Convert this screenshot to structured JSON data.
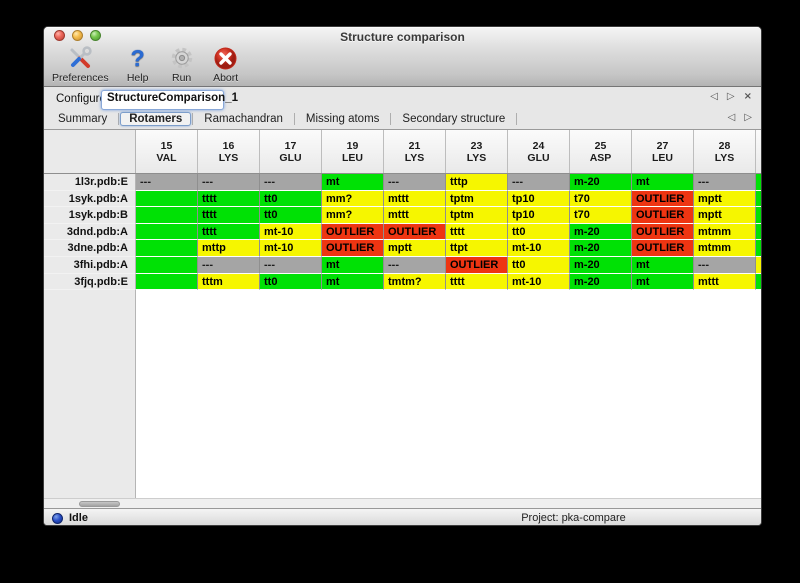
{
  "window": {
    "title": "Structure comparison"
  },
  "toolbar": {
    "buttons": [
      {
        "label": "Preferences",
        "icon": "tools-icon"
      },
      {
        "label": "Help",
        "icon": "question-icon"
      },
      {
        "label": "Run",
        "icon": "gear-icon"
      },
      {
        "label": "Abort",
        "icon": "abort-icon"
      }
    ]
  },
  "configure": {
    "label": "Configure",
    "value": "StructureComparison_1",
    "nav_prev": "◁",
    "nav_next": "▷",
    "nav_close": "×"
  },
  "tabs": {
    "items": [
      {
        "label": "Summary",
        "selected": false
      },
      {
        "label": "Rotamers",
        "selected": true
      },
      {
        "label": "Ramachandran",
        "selected": false
      },
      {
        "label": "Missing atoms",
        "selected": false
      },
      {
        "label": "Secondary structure",
        "selected": false
      }
    ],
    "nav_prev": "◁",
    "nav_next": "▷"
  },
  "table": {
    "columns": [
      {
        "num": "15",
        "res": "VAL"
      },
      {
        "num": "16",
        "res": "LYS"
      },
      {
        "num": "17",
        "res": "GLU"
      },
      {
        "num": "19",
        "res": "LEU"
      },
      {
        "num": "21",
        "res": "LYS"
      },
      {
        "num": "23",
        "res": "LYS"
      },
      {
        "num": "24",
        "res": "GLU"
      },
      {
        "num": "25",
        "res": "ASP"
      },
      {
        "num": "27",
        "res": "LEU"
      },
      {
        "num": "28",
        "res": "LYS"
      }
    ],
    "rows": [
      {
        "label": "1l3r.pdb:E",
        "cells": [
          [
            "---",
            "gray"
          ],
          [
            "---",
            "gray"
          ],
          [
            "---",
            "gray"
          ],
          [
            "mt",
            "green"
          ],
          [
            "---",
            "gray"
          ],
          [
            "tttp",
            "yellow"
          ],
          [
            "---",
            "gray"
          ],
          [
            "m-20",
            "green"
          ],
          [
            "mt",
            "green"
          ],
          [
            "---",
            "gray"
          ]
        ],
        "partial": "green"
      },
      {
        "label": "1syk.pdb:A",
        "cells": [
          [
            "",
            "green"
          ],
          [
            "tttt",
            "green"
          ],
          [
            "tt0",
            "green"
          ],
          [
            "mm?",
            "yellow"
          ],
          [
            "mttt",
            "yellow"
          ],
          [
            "tptm",
            "yellow"
          ],
          [
            "tp10",
            "yellow"
          ],
          [
            "t70",
            "yellow"
          ],
          [
            "OUTLIER",
            "red"
          ],
          [
            "mptt",
            "yellow"
          ]
        ],
        "partial": "green"
      },
      {
        "label": "1syk.pdb:B",
        "cells": [
          [
            "",
            "green"
          ],
          [
            "tttt",
            "green"
          ],
          [
            "tt0",
            "green"
          ],
          [
            "mm?",
            "yellow"
          ],
          [
            "mttt",
            "yellow"
          ],
          [
            "tptm",
            "yellow"
          ],
          [
            "tp10",
            "yellow"
          ],
          [
            "t70",
            "yellow"
          ],
          [
            "OUTLIER",
            "red"
          ],
          [
            "mptt",
            "yellow"
          ]
        ],
        "partial": "green"
      },
      {
        "label": "3dnd.pdb:A",
        "cells": [
          [
            "",
            "green"
          ],
          [
            "tttt",
            "green"
          ],
          [
            "mt-10",
            "yellow"
          ],
          [
            "OUTLIER",
            "red"
          ],
          [
            "OUTLIER",
            "red"
          ],
          [
            "tttt",
            "yellow"
          ],
          [
            "tt0",
            "yellow"
          ],
          [
            "m-20",
            "green"
          ],
          [
            "OUTLIER",
            "red"
          ],
          [
            "mtmm",
            "yellow"
          ]
        ],
        "partial": "green"
      },
      {
        "label": "3dne.pdb:A",
        "cells": [
          [
            "",
            "green"
          ],
          [
            "mttp",
            "yellow"
          ],
          [
            "mt-10",
            "yellow"
          ],
          [
            "OUTLIER",
            "red"
          ],
          [
            "mptt",
            "yellow"
          ],
          [
            "ttpt",
            "yellow"
          ],
          [
            "mt-10",
            "yellow"
          ],
          [
            "m-20",
            "green"
          ],
          [
            "OUTLIER",
            "red"
          ],
          [
            "mtmm",
            "yellow"
          ]
        ],
        "partial": "green"
      },
      {
        "label": "3fhi.pdb:A",
        "cells": [
          [
            "",
            "green"
          ],
          [
            "---",
            "gray"
          ],
          [
            "---",
            "gray"
          ],
          [
            "mt",
            "green"
          ],
          [
            "---",
            "gray"
          ],
          [
            "OUTLIER",
            "red"
          ],
          [
            "tt0",
            "yellow"
          ],
          [
            "m-20",
            "green"
          ],
          [
            "mt",
            "green"
          ],
          [
            "---",
            "gray"
          ]
        ],
        "partial": "yellow"
      },
      {
        "label": "3fjq.pdb:E",
        "cells": [
          [
            "",
            "green"
          ],
          [
            "tttm",
            "yellow"
          ],
          [
            "tt0",
            "green"
          ],
          [
            "mt",
            "green"
          ],
          [
            "tmtm?",
            "yellow"
          ],
          [
            "tttt",
            "yellow"
          ],
          [
            "mt-10",
            "yellow"
          ],
          [
            "m-20",
            "green"
          ],
          [
            "mt",
            "green"
          ],
          [
            "mttt",
            "yellow"
          ]
        ],
        "partial": "green"
      }
    ]
  },
  "statusbar": {
    "status": "Idle",
    "project": "Project: pka-compare"
  },
  "colors": {
    "green": "#00e105",
    "yellow": "#f6f600",
    "red": "#ee3512",
    "gray": "#a5a5a5"
  }
}
